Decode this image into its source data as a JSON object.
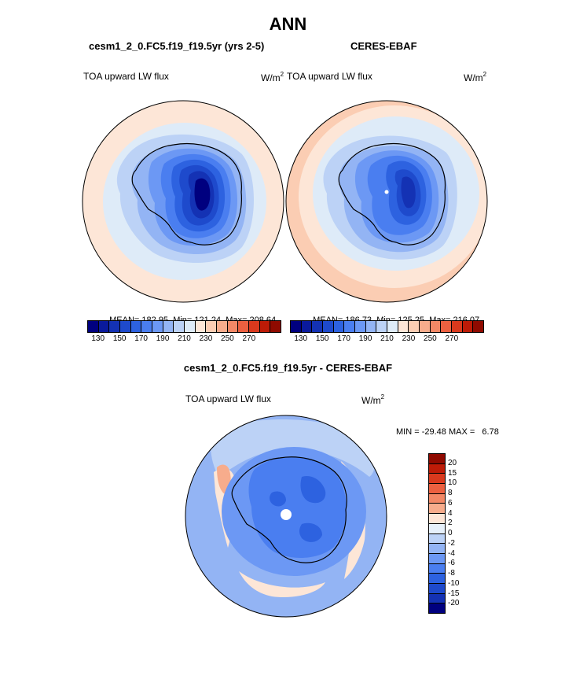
{
  "title": "ANN",
  "panels": [
    {
      "subtitle": "cesm1_2_0.FC5.f19_f19.5yr (yrs 2-5)",
      "left_label": "TOA upward LW flux",
      "units_base": "W/m",
      "units_exp": "2",
      "stats": {
        "mean_label": "MEAN=",
        "mean": "182.95",
        "min_label": "Min=",
        "min": "121.24",
        "max_label": "Max=",
        "max": "208.64"
      }
    },
    {
      "subtitle": "CERES-EBAF",
      "left_label": "TOA upward LW flux",
      "units_base": "W/m",
      "units_exp": "2",
      "stats": {
        "mean_label": "MEAN=",
        "mean": "186.73",
        "min_label": "Min=",
        "min": "125.25",
        "max_label": "Max=",
        "max": "216.07"
      }
    },
    {
      "subtitle": "cesm1_2_0.FC5.f19_f19.5yr - CERES-EBAF",
      "left_label": "TOA upward LW flux",
      "units_base": "W/m",
      "units_exp": "2",
      "stats_text": "MIN = -29.48 MAX =   6.78"
    }
  ],
  "colorbar_abs": {
    "colors": [
      "#00007f",
      "#0a1a9c",
      "#1432b4",
      "#1e4acc",
      "#2d62e0",
      "#4a7ef0",
      "#6c98f4",
      "#93b4f4",
      "#bcd2f6",
      "#deebf8",
      "#fde6d7",
      "#fbcdb3",
      "#f7ac8c",
      "#f38866",
      "#ec6040",
      "#d9391d",
      "#bd1b07",
      "#8f0a00"
    ],
    "tick_labels": [
      "130",
      "150",
      "170",
      "190",
      "210",
      "230",
      "250",
      "270"
    ]
  },
  "colorbar_diff": {
    "colors": [
      "#8f0a00",
      "#bd1b07",
      "#d9391d",
      "#ec6040",
      "#f38866",
      "#f7ac8c",
      "#fde6d7",
      "#e6f0fa",
      "#bcd2f6",
      "#93b4f4",
      "#6c98f4",
      "#4a7ef0",
      "#2d62e0",
      "#1e4acc",
      "#1432b4",
      "#00007f"
    ],
    "tick_labels": [
      "20",
      "15",
      "10",
      "8",
      "6",
      "4",
      "2",
      "0",
      "-2",
      "-4",
      "-6",
      "-8",
      "-10",
      "-15",
      "-20"
    ]
  },
  "map_colors": {
    "outer": "#fde6d7",
    "ring": "#deebf8",
    "shelf": "#bcd2f6",
    "coast": "#93b4f4",
    "l1": "#6c98f4",
    "l2": "#4a7ef0",
    "l3": "#2d62e0",
    "l4": "#1e4acc",
    "l5": "#1432b4",
    "l6": "#00007f",
    "obs_outer": "#fbcdb3",
    "diff_bg": "#93b4f4",
    "diff_mid": "#6c98f4",
    "diff_inner": "#4a7ef0",
    "diff_deep": "#2d62e0",
    "diff_pos": "#fde6d7",
    "diff_pos2": "#f7ac8c",
    "diff_neutral": "#bcd2f6"
  }
}
